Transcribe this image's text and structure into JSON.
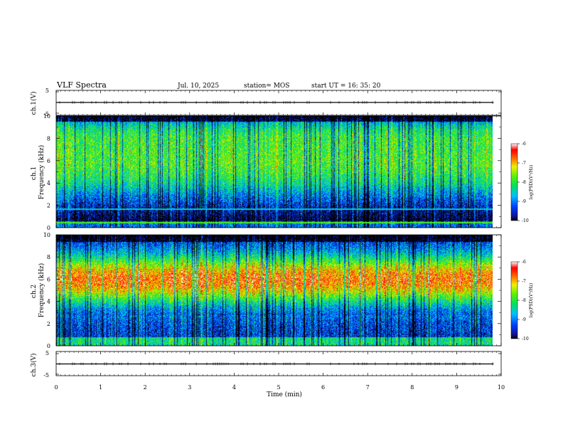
{
  "header": {
    "title": "VLF Spectra",
    "date": "Jul. 10, 2025",
    "station": "station= MOS",
    "start": "start UT = 16: 35: 20"
  },
  "chart_data": [
    {
      "type": "line",
      "name": "ch1-voltage",
      "ylabel": "ch.1(V)",
      "ylim": [
        -5,
        5
      ],
      "yticks": [
        "5",
        "-5"
      ],
      "xlim": [
        0,
        10
      ],
      "trace_level": 0,
      "data_end_min": 9.83
    },
    {
      "type": "heatmap",
      "name": "ch1-spectrogram",
      "ylabel": "ch.1 Frequency (kHz)",
      "ylabel_line1": "ch.1",
      "ylabel_line2": "Frequency (kHz)",
      "ylim": [
        0,
        10
      ],
      "yticks": [
        "0",
        "2",
        "4",
        "6",
        "8",
        "10"
      ],
      "xlim": [
        0,
        10
      ],
      "data_end_min": 9.83,
      "band_peak_khz": 6.0,
      "colorbar": {
        "label": "log(PSD)(V²/Hz)",
        "ticks": [
          "-6",
          "-7",
          "-8",
          "-9",
          "-10"
        ],
        "range": [
          -10,
          -6
        ]
      }
    },
    {
      "type": "heatmap",
      "name": "ch2-spectrogram",
      "ylabel": "ch.2 Frequency (kHz)",
      "ylabel_line1": "ch.2",
      "ylabel_line2": "Frequency (kHz)",
      "ylim": [
        0,
        10
      ],
      "yticks": [
        "0",
        "2",
        "4",
        "6",
        "8",
        "10"
      ],
      "xlim": [
        0,
        10
      ],
      "data_end_min": 9.83,
      "band_peak_khz": 6.0,
      "colorbar": {
        "label": "log(PSD)(V²/Hz)",
        "ticks": [
          "-6",
          "-7",
          "-8",
          "-9",
          "-10"
        ],
        "range": [
          -10,
          -6
        ]
      }
    },
    {
      "type": "line",
      "name": "ch3-voltage",
      "ylabel": "ch.3(V)",
      "ylim": [
        -5,
        5
      ],
      "yticks": [
        "5",
        "-5"
      ],
      "xlim": [
        0,
        10
      ],
      "trace_level": 0,
      "data_end_min": 9.83
    }
  ],
  "xaxis": {
    "label": "Time (min)",
    "ticks": [
      "0",
      "1",
      "2",
      "3",
      "4",
      "5",
      "6",
      "7",
      "8",
      "9",
      "10"
    ]
  },
  "colors": {
    "background": "#ffffff",
    "axis": "#000000"
  }
}
